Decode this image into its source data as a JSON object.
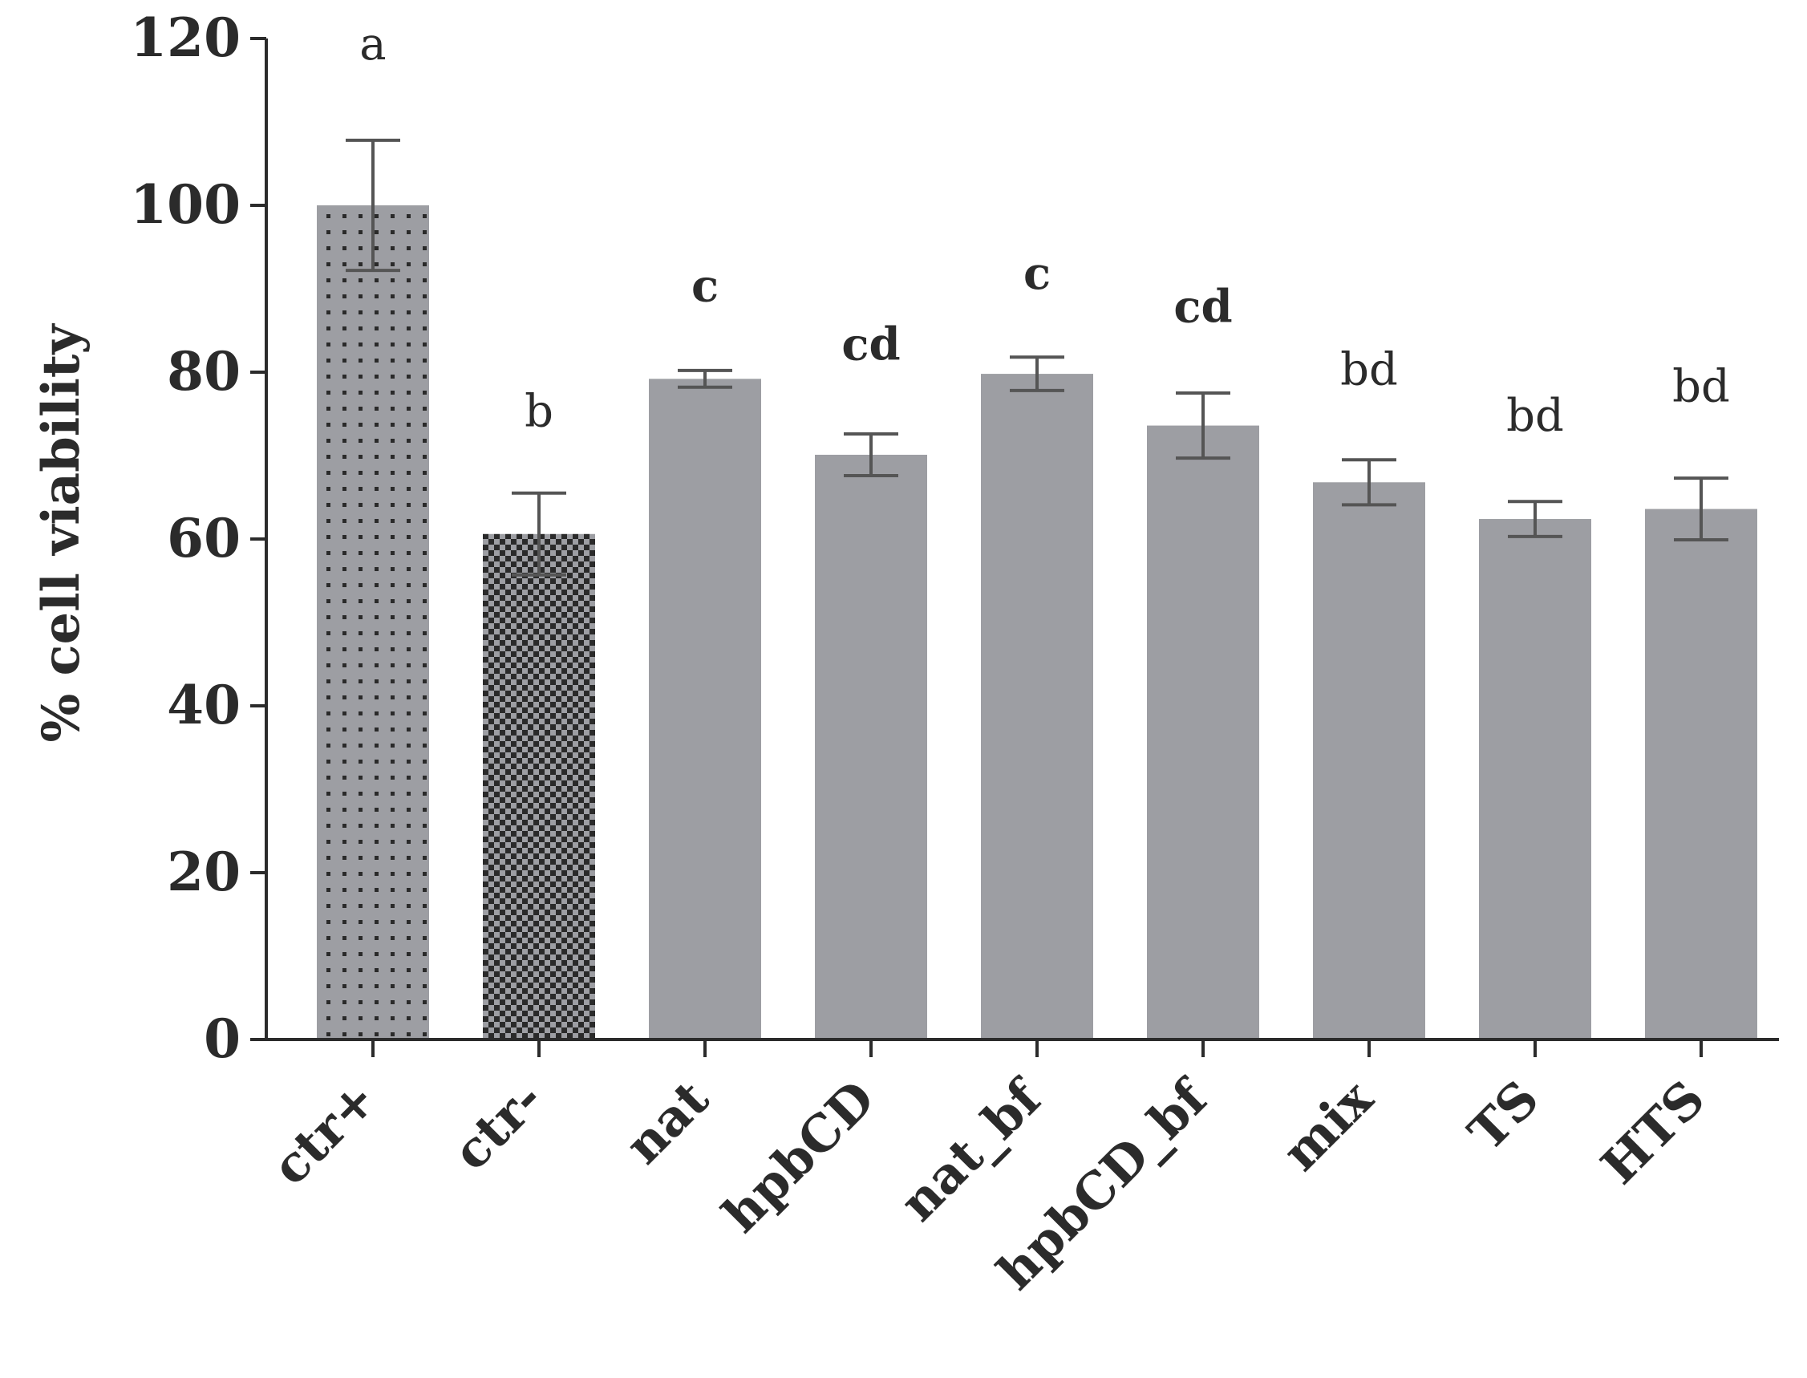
{
  "chart_data": {
    "type": "bar",
    "ylabel": "% cell viability",
    "xlabel": "",
    "ylim": [
      0,
      120
    ],
    "yticks": [
      0,
      20,
      40,
      60,
      80,
      100,
      120
    ],
    "categories": [
      "ctr+",
      "ctr-",
      "nat",
      "hpbCD",
      "nat_bf",
      "hpbCD_bf",
      "mix",
      "TS",
      "HTS"
    ],
    "values": [
      100,
      60.6,
      79.2,
      70.1,
      79.8,
      73.6,
      66.8,
      62.4,
      63.6
    ],
    "errors": [
      7.8,
      4.9,
      1.0,
      2.5,
      2.0,
      3.9,
      2.7,
      2.1,
      3.7
    ],
    "significance": [
      "a",
      "b",
      "c",
      "cd",
      "c",
      "cd",
      "bd",
      "bd",
      "bd"
    ],
    "significance_bold": [
      false,
      false,
      true,
      true,
      true,
      true,
      false,
      false,
      false
    ],
    "significance_y": [
      117.5,
      73.5,
      88.5,
      81.5,
      90,
      86,
      78.5,
      73,
      76.5
    ],
    "bar_fill": [
      "dots",
      "checker",
      "solid",
      "solid",
      "solid",
      "solid",
      "solid",
      "solid",
      "solid"
    ],
    "colors": {
      "bar": "#9d9ea3",
      "axis": "#2b2b2b",
      "error": "#555555",
      "pattern_dark": "#2a2a2a",
      "pattern_light": "#9d9ea3"
    },
    "grid": false,
    "legend": "none"
  }
}
